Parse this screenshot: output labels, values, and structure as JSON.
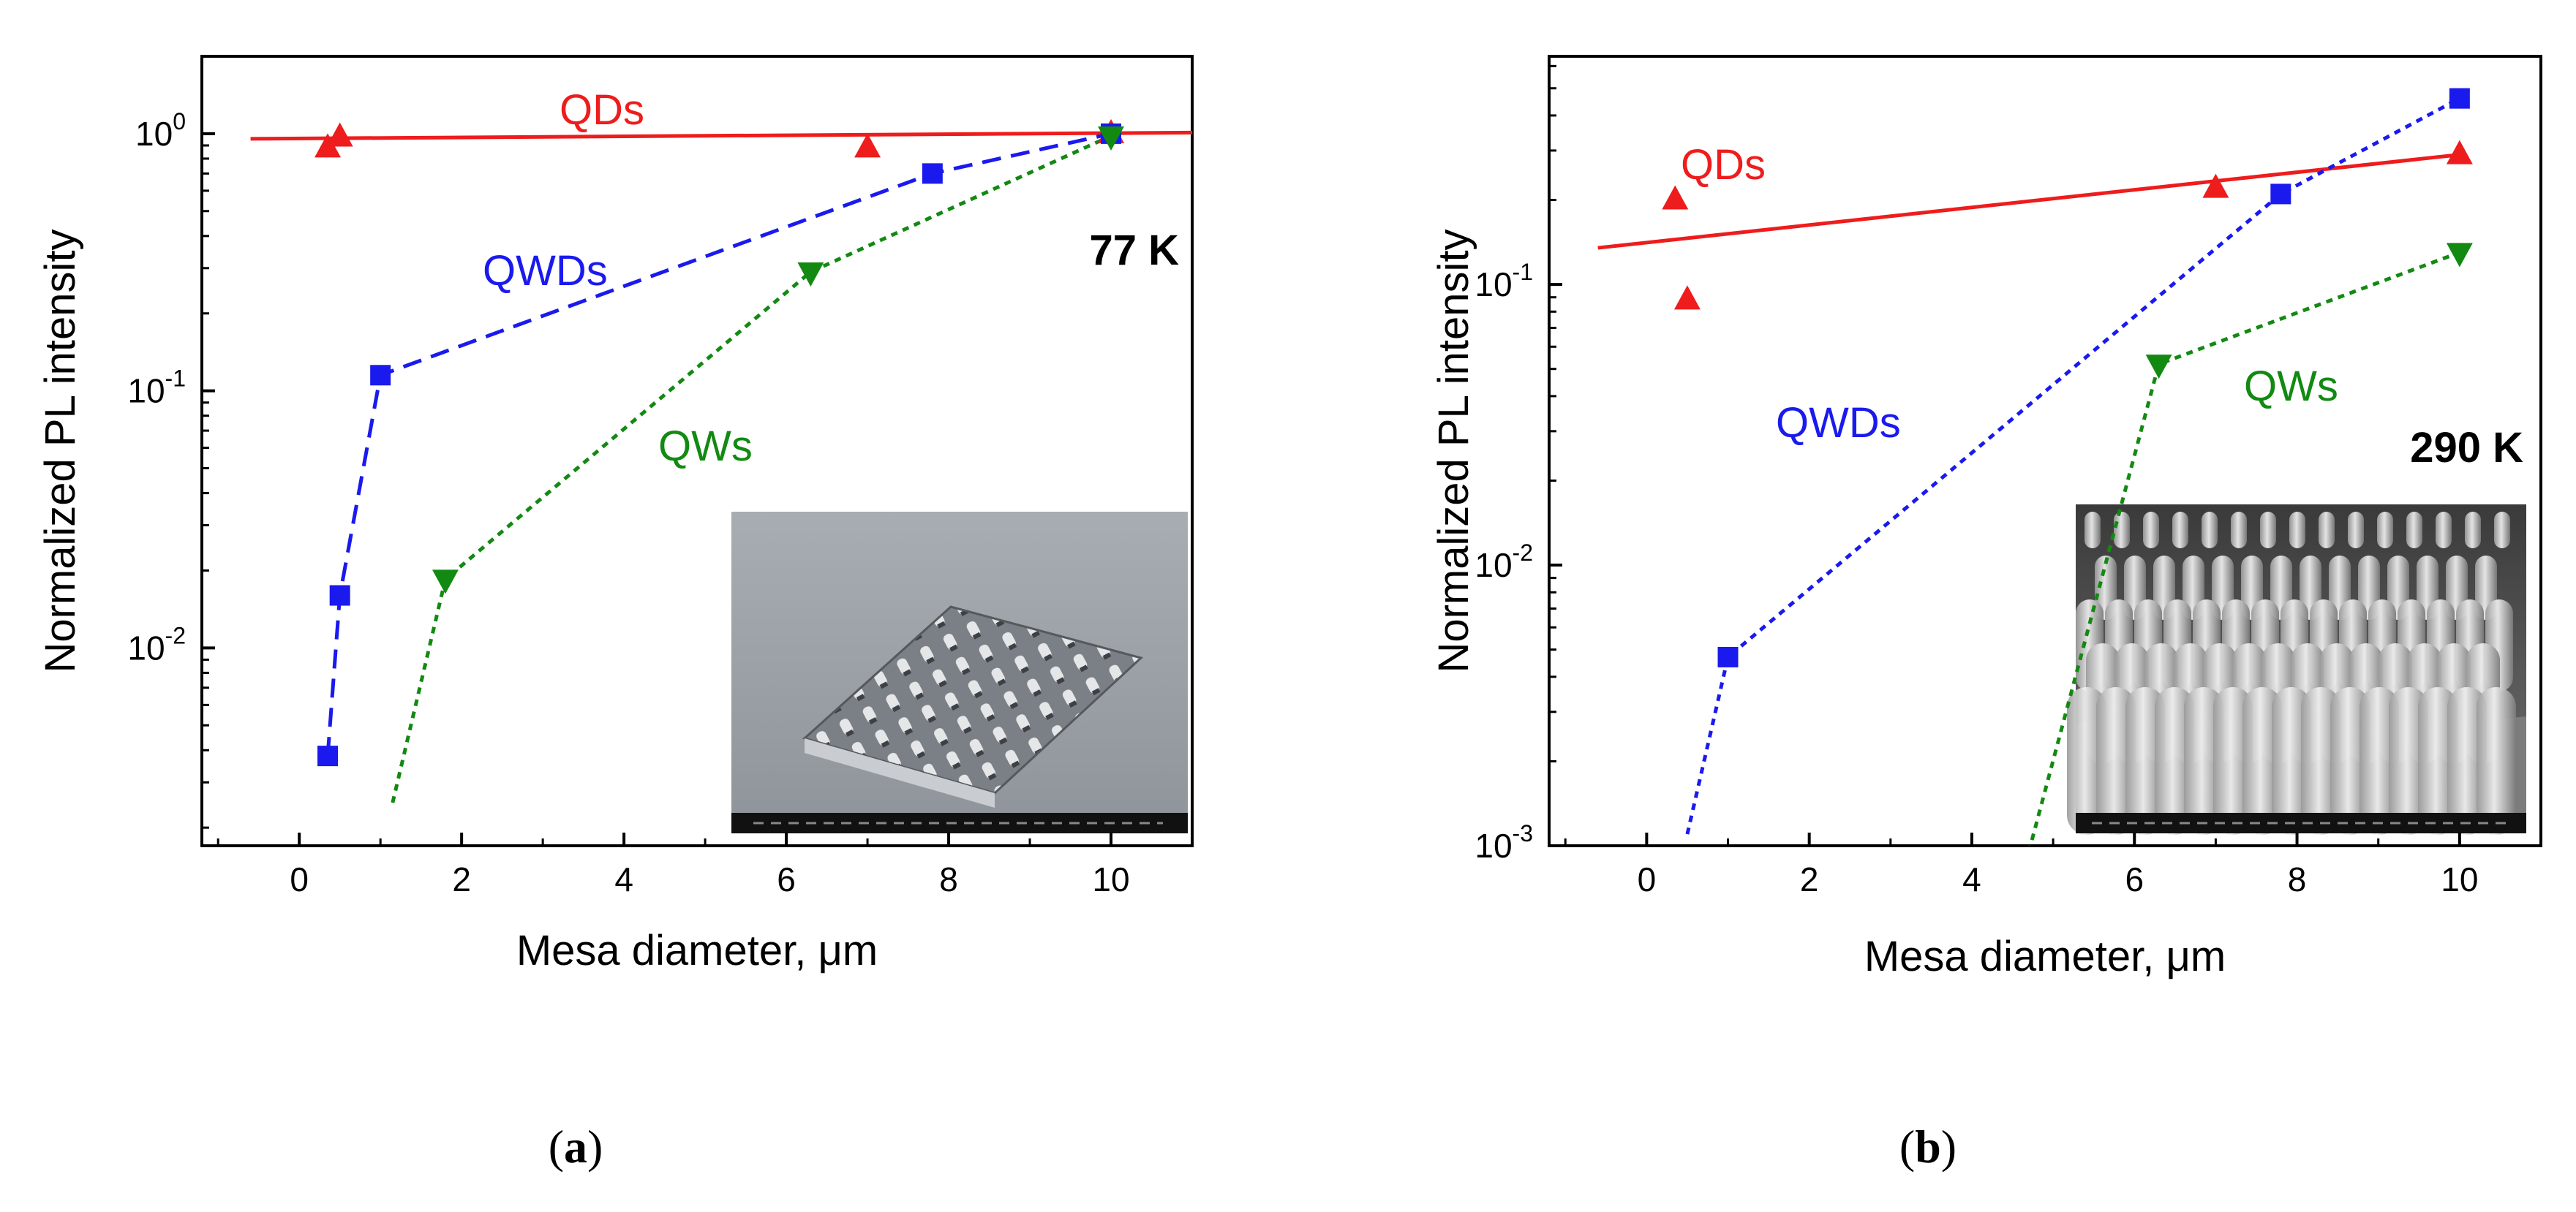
{
  "colors": {
    "QDs": "#ee1c1c",
    "QWDs": "#1a1aee",
    "QWs": "#128a12"
  },
  "chart_data": [
    {
      "type": "scatter",
      "panel": "a",
      "panel_label": "(a)",
      "panel_letter": "a",
      "temperature_label": "77 K",
      "xlabel": "Mesa diameter, μm",
      "ylabel": "Normalized PL intensity",
      "yscale": "log",
      "xlim": [
        -1.2,
        11
      ],
      "ylim": [
        0.0017,
        2.0
      ],
      "xticks": [
        0,
        2,
        4,
        6,
        8,
        10
      ],
      "yticks": [
        {
          "value": 0.01,
          "base": "10",
          "exp": "-2"
        },
        {
          "value": 0.1,
          "base": "10",
          "exp": "-1"
        },
        {
          "value": 1,
          "base": "10",
          "exp": "0"
        }
      ],
      "inset": "SEM image of nanopillar mesa array",
      "series": [
        {
          "name": "QDs",
          "marker": "triangle-up",
          "line": "solid",
          "points": [
            [
              0.35,
              0.88
            ],
            [
              0.5,
              0.97
            ],
            [
              7.0,
              0.88
            ],
            [
              10.0,
              1.0
            ]
          ],
          "fit": [
            [
              -0.6,
              0.955
            ],
            [
              11.0,
              1.01
            ]
          ]
        },
        {
          "name": "QWDs",
          "marker": "square",
          "line": "dashed",
          "points": [
            [
              0.35,
              0.0038
            ],
            [
              0.5,
              0.016
            ],
            [
              1.0,
              0.115
            ],
            [
              7.8,
              0.7
            ],
            [
              10.0,
              1.0
            ]
          ]
        },
        {
          "name": "QWs",
          "marker": "triangle-down",
          "line": "dotted",
          "points": [
            [
              1.8,
              0.0185
            ],
            [
              6.3,
              0.29
            ],
            [
              10.0,
              0.98
            ]
          ],
          "line_start": [
            1.15,
            0.0025
          ]
        }
      ]
    },
    {
      "type": "scatter",
      "panel": "b",
      "panel_label": "(b)",
      "panel_letter": "b",
      "temperature_label": "290 K",
      "xlabel": "Mesa diameter, μm",
      "ylabel": "Normalized PL intensity",
      "yscale": "log",
      "xlim": [
        -1.2,
        11
      ],
      "ylim": [
        0.001,
        0.65
      ],
      "xticks": [
        0,
        2,
        4,
        6,
        8,
        10
      ],
      "yticks": [
        {
          "value": 0.001,
          "base": "10",
          "exp": "-3"
        },
        {
          "value": 0.01,
          "base": "10",
          "exp": "-2"
        },
        {
          "value": 0.1,
          "base": "10",
          "exp": "-1"
        }
      ],
      "inset": "SEM image of nanopillar array (close-up)",
      "series": [
        {
          "name": "QDs",
          "marker": "triangle-up",
          "line": "solid",
          "points": [
            [
              0.35,
              0.2
            ],
            [
              0.5,
              0.088
            ],
            [
              7.0,
              0.22
            ],
            [
              10.0,
              0.29
            ]
          ],
          "fit": [
            [
              -0.6,
              0.135
            ],
            [
              10.0,
              0.29
            ]
          ]
        },
        {
          "name": "QWDs",
          "marker": "square",
          "line": "dotted",
          "points": [
            [
              1.0,
              0.0047
            ],
            [
              7.8,
              0.21
            ],
            [
              10.0,
              0.46
            ]
          ],
          "line_start": [
            0.5,
            0.0011
          ]
        },
        {
          "name": "QWs",
          "marker": "triangle-down",
          "line": "dotted",
          "points": [
            [
              6.3,
              0.052
            ],
            [
              10.0,
              0.13
            ]
          ],
          "line_start": [
            4.7,
            0.00095
          ]
        }
      ]
    }
  ]
}
